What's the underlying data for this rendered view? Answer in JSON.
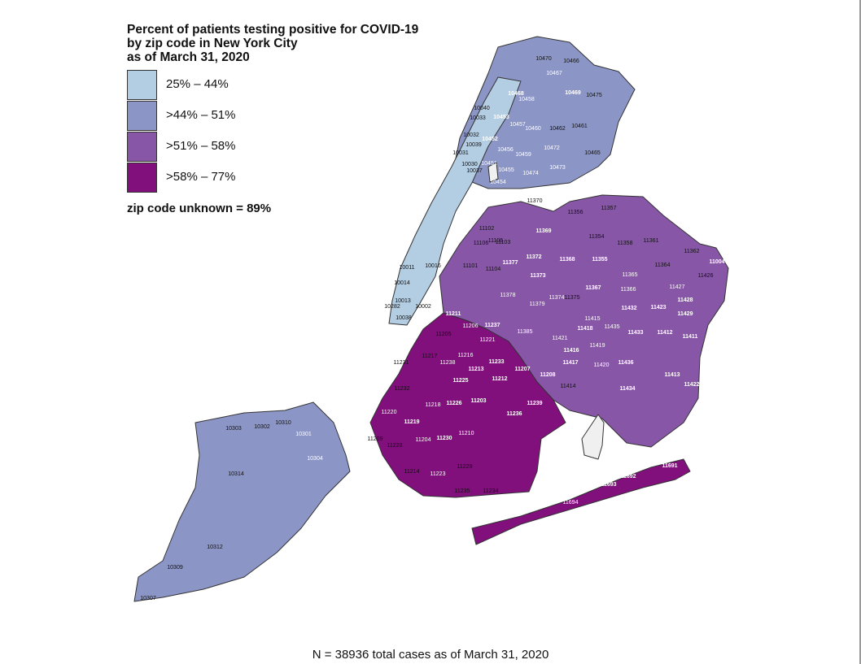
{
  "title_lines": [
    "Percent of patients testing positive for COVID-19",
    "by zip code in New York City",
    "as of March 31, 2020"
  ],
  "legend": [
    {
      "label": "25% – 44%",
      "color": "#b3cde3"
    },
    {
      "label": ">44% – 51%",
      "color": "#8c96c6"
    },
    {
      "label": ">51% – 58%",
      "color": "#8856a7"
    },
    {
      "label": ">58% – 77%",
      "color": "#810f7c"
    }
  ],
  "unknown_note": "zip code unknown = 89%",
  "footnote": "N = 38936 total cases as of March 31, 2020",
  "no_data_color": "#f0f0f0",
  "zip_labels": [
    {
      "zip": "10470",
      "cls": 1
    },
    {
      "zip": "10466",
      "cls": 1
    },
    {
      "zip": "10467",
      "cls": 2
    },
    {
      "zip": "10469",
      "cls": 3
    },
    {
      "zip": "10475",
      "cls": 1
    },
    {
      "zip": "10468",
      "cls": 3
    },
    {
      "zip": "10458",
      "cls": 2
    },
    {
      "zip": "10040",
      "cls": 0
    },
    {
      "zip": "10033",
      "cls": 1
    },
    {
      "zip": "10453",
      "cls": 3
    },
    {
      "zip": "10457",
      "cls": 2
    },
    {
      "zip": "10460",
      "cls": 2
    },
    {
      "zip": "10462",
      "cls": 1
    },
    {
      "zip": "10461",
      "cls": 1
    },
    {
      "zip": "10032",
      "cls": 1
    },
    {
      "zip": "10452",
      "cls": 3
    },
    {
      "zip": "10039",
      "cls": 1
    },
    {
      "zip": "10456",
      "cls": 2
    },
    {
      "zip": "10459",
      "cls": 2
    },
    {
      "zip": "10472",
      "cls": 2
    },
    {
      "zip": "10465",
      "cls": 1
    },
    {
      "zip": "10031",
      "cls": 1
    },
    {
      "zip": "10030",
      "cls": 1
    },
    {
      "zip": "10451",
      "cls": 2
    },
    {
      "zip": "10037",
      "cls": 1
    },
    {
      "zip": "10455",
      "cls": 2
    },
    {
      "zip": "10473",
      "cls": 2
    },
    {
      "zip": "10474",
      "cls": 2
    },
    {
      "zip": "10454",
      "cls": 2
    },
    {
      "zip": "11370",
      "cls": 1
    },
    {
      "zip": "11356",
      "cls": 1
    },
    {
      "zip": "11357",
      "cls": 1
    },
    {
      "zip": "11102",
      "cls": 1
    },
    {
      "zip": "11369",
      "cls": 3
    },
    {
      "zip": "11354",
      "cls": 1
    },
    {
      "zip": "11105",
      "cls": 1
    },
    {
      "zip": "11106",
      "cls": 1
    },
    {
      "zip": "11103",
      "cls": 1
    },
    {
      "zip": "11358",
      "cls": 1
    },
    {
      "zip": "11361",
      "cls": 1
    },
    {
      "zip": "11362",
      "cls": 1
    },
    {
      "zip": "11004",
      "cls": 3
    },
    {
      "zip": "10016",
      "cls": 0
    },
    {
      "zip": "10011",
      "cls": 0
    },
    {
      "zip": "11101",
      "cls": 1
    },
    {
      "zip": "11104",
      "cls": 1
    },
    {
      "zip": "11377",
      "cls": 3
    },
    {
      "zip": "11372",
      "cls": 3
    },
    {
      "zip": "11368",
      "cls": 3
    },
    {
      "zip": "11355",
      "cls": 3
    },
    {
      "zip": "11364",
      "cls": 1
    },
    {
      "zip": "11373",
      "cls": 3
    },
    {
      "zip": "11365",
      "cls": 2
    },
    {
      "zip": "11426",
      "cls": 1
    },
    {
      "zip": "10014",
      "cls": 0
    },
    {
      "zip": "11367",
      "cls": 3
    },
    {
      "zip": "11366",
      "cls": 2
    },
    {
      "zip": "11427",
      "cls": 2
    },
    {
      "zip": "11378",
      "cls": 2
    },
    {
      "zip": "11374",
      "cls": 2
    },
    {
      "zip": "11375",
      "cls": 1
    },
    {
      "zip": "11428",
      "cls": 3
    },
    {
      "zip": "10013",
      "cls": 0
    },
    {
      "zip": "11379",
      "cls": 2
    },
    {
      "zip": "10282",
      "cls": 0
    },
    {
      "zip": "10002",
      "cls": 1
    },
    {
      "zip": "11432",
      "cls": 3
    },
    {
      "zip": "11423",
      "cls": 3
    },
    {
      "zip": "11429",
      "cls": 3
    },
    {
      "zip": "11211",
      "cls": 3
    },
    {
      "zip": "10038",
      "cls": 0
    },
    {
      "zip": "11415",
      "cls": 2
    },
    {
      "zip": "11206",
      "cls": 2
    },
    {
      "zip": "11237",
      "cls": 3
    },
    {
      "zip": "11418",
      "cls": 3
    },
    {
      "zip": "11435",
      "cls": 2
    },
    {
      "zip": "11205",
      "cls": 1
    },
    {
      "zip": "11385",
      "cls": 2
    },
    {
      "zip": "11433",
      "cls": 3
    },
    {
      "zip": "11412",
      "cls": 3
    },
    {
      "zip": "11411",
      "cls": 3
    },
    {
      "zip": "11221",
      "cls": 2
    },
    {
      "zip": "11421",
      "cls": 2
    },
    {
      "zip": "11419",
      "cls": 2
    },
    {
      "zip": "11217",
      "cls": 1
    },
    {
      "zip": "11216",
      "cls": 2
    },
    {
      "zip": "11416",
      "cls": 3
    },
    {
      "zip": "11231",
      "cls": 1
    },
    {
      "zip": "11238",
      "cls": 2
    },
    {
      "zip": "11233",
      "cls": 3
    },
    {
      "zip": "11417",
      "cls": 3
    },
    {
      "zip": "11420",
      "cls": 2
    },
    {
      "zip": "11436",
      "cls": 3
    },
    {
      "zip": "11213",
      "cls": 3
    },
    {
      "zip": "11207",
      "cls": 3
    },
    {
      "zip": "11208",
      "cls": 3
    },
    {
      "zip": "11413",
      "cls": 3
    },
    {
      "zip": "11225",
      "cls": 3
    },
    {
      "zip": "11212",
      "cls": 3
    },
    {
      "zip": "11414",
      "cls": 1
    },
    {
      "zip": "11434",
      "cls": 3
    },
    {
      "zip": "11422",
      "cls": 3
    },
    {
      "zip": "11232",
      "cls": 1
    },
    {
      "zip": "11218",
      "cls": 2
    },
    {
      "zip": "11226",
      "cls": 3
    },
    {
      "zip": "11203",
      "cls": 3
    },
    {
      "zip": "11239",
      "cls": 3
    },
    {
      "zip": "11236",
      "cls": 3
    },
    {
      "zip": "11220",
      "cls": 2
    },
    {
      "zip": "11219",
      "cls": 3
    },
    {
      "zip": "10303",
      "cls": 1
    },
    {
      "zip": "10302",
      "cls": 1
    },
    {
      "zip": "10310",
      "cls": 1
    },
    {
      "zip": "10301",
      "cls": 2
    },
    {
      "zip": "11204",
      "cls": 2
    },
    {
      "zip": "11230",
      "cls": 3
    },
    {
      "zip": "11210",
      "cls": 2
    },
    {
      "zip": "11209",
      "cls": 1
    },
    {
      "zip": "11228",
      "cls": 1
    },
    {
      "zip": "10304",
      "cls": 2
    },
    {
      "zip": "11691",
      "cls": 3
    },
    {
      "zip": "10314",
      "cls": 1
    },
    {
      "zip": "11214",
      "cls": 1
    },
    {
      "zip": "11223",
      "cls": 2
    },
    {
      "zip": "11229",
      "cls": 1
    },
    {
      "zip": "11692",
      "cls": 3
    },
    {
      "zip": "11693",
      "cls": 3
    },
    {
      "zip": "11235",
      "cls": 1
    },
    {
      "zip": "11234",
      "cls": 1
    },
    {
      "zip": "11694",
      "cls": 2
    },
    {
      "zip": "10312",
      "cls": 1
    },
    {
      "zip": "10309",
      "cls": 1
    },
    {
      "zip": "10307",
      "cls": 1
    }
  ]
}
